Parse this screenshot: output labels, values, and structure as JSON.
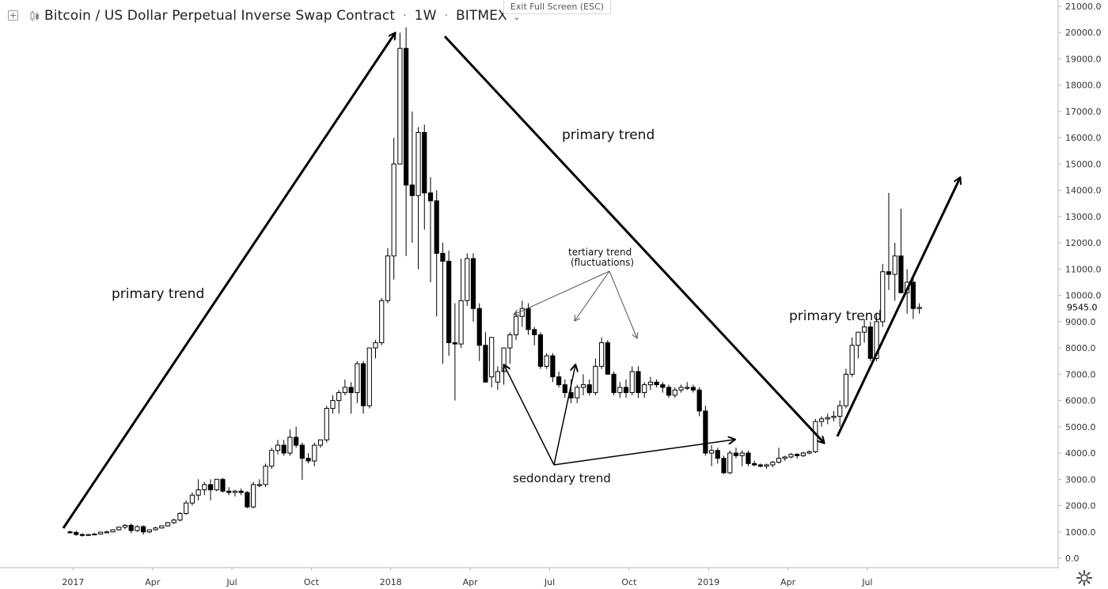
{
  "header": {
    "title": "Bitcoin / US Dollar Perpetual Inverse Swap Contract",
    "interval": "1W",
    "exchange": "BITMEX",
    "exit_fullscreen_label": "Exit Full Screen (ESC)"
  },
  "price_label": "9545.0",
  "icons": {
    "expand": "plus-square-icon",
    "chart_type": "candles-icon",
    "dropdown": "chevron-down-icon",
    "settings": "gear-icon"
  },
  "annotations": [
    {
      "text": "primary trend",
      "target": "2017 uptrend"
    },
    {
      "text": "primary trend",
      "target": "2018 downtrend"
    },
    {
      "text": "primary trend",
      "target": "2019 uptrend"
    },
    {
      "text": "tertiary trend",
      "target": "fluctuations label line 1"
    },
    {
      "text": "(fluctuations)",
      "target": "fluctuations label line 2"
    },
    {
      "text": "sedondary trend",
      "target": "secondary swings"
    }
  ],
  "chart_data": {
    "type": "candlestick",
    "title": "Bitcoin / US Dollar Perpetual Inverse Swap Contract",
    "interval": "1W",
    "exchange": "BITMEX",
    "y_ticks": [
      0,
      1000,
      2000,
      3000,
      4000,
      5000,
      6000,
      7000,
      8000,
      9000,
      10000,
      11000,
      12000,
      13000,
      14000,
      15000,
      16000,
      17000,
      18000,
      19000,
      20000,
      21000
    ],
    "ylim": [
      0,
      21000
    ],
    "x_ticks": [
      "2017",
      "Apr",
      "Jul",
      "Oct",
      "2018",
      "Apr",
      "Jul",
      "Oct",
      "2019",
      "Apr",
      "Jul"
    ],
    "last_price": 9545.0,
    "weeks_start": "2017-01-02",
    "ohlc": [
      [
        1000,
        1050,
        950,
        980
      ],
      [
        980,
        1050,
        850,
        900
      ],
      [
        900,
        950,
        820,
        870
      ],
      [
        870,
        920,
        850,
        900
      ],
      [
        900,
        960,
        880,
        920
      ],
      [
        920,
        1000,
        900,
        990
      ],
      [
        990,
        1050,
        970,
        1000
      ],
      [
        1000,
        1100,
        980,
        1080
      ],
      [
        1080,
        1200,
        1050,
        1180
      ],
      [
        1180,
        1300,
        1100,
        1250
      ],
      [
        1250,
        1320,
        950,
        1050
      ],
      [
        1050,
        1250,
        1000,
        1200
      ],
      [
        1200,
        1250,
        900,
        1000
      ],
      [
        1000,
        1100,
        950,
        1080
      ],
      [
        1080,
        1200,
        1050,
        1150
      ],
      [
        1150,
        1250,
        1120,
        1230
      ],
      [
        1230,
        1380,
        1200,
        1350
      ],
      [
        1350,
        1500,
        1300,
        1450
      ],
      [
        1450,
        1750,
        1400,
        1700
      ],
      [
        1700,
        2200,
        1650,
        2100
      ],
      [
        2100,
        2500,
        2000,
        2400
      ],
      [
        2400,
        3000,
        2200,
        2600
      ],
      [
        2600,
        2900,
        2400,
        2800
      ],
      [
        2800,
        3000,
        2200,
        2600
      ],
      [
        2600,
        3000,
        2550,
        3000
      ],
      [
        3000,
        3050,
        2500,
        2550
      ],
      [
        2550,
        2700,
        2400,
        2500
      ],
      [
        2500,
        2600,
        2350,
        2550
      ],
      [
        2550,
        2650,
        2400,
        2500
      ],
      [
        2500,
        2550,
        1900,
        1950
      ],
      [
        1950,
        2900,
        1900,
        2800
      ],
      [
        2800,
        3000,
        2700,
        2800
      ],
      [
        2800,
        3600,
        2700,
        3500
      ],
      [
        3500,
        4200,
        3400,
        4100
      ],
      [
        4100,
        4500,
        3950,
        4300
      ],
      [
        4300,
        4500,
        3900,
        4000
      ],
      [
        4000,
        4900,
        3900,
        4600
      ],
      [
        4600,
        5000,
        4200,
        4300
      ],
      [
        4300,
        4400,
        2980,
        3800
      ],
      [
        3800,
        4000,
        3600,
        3700
      ],
      [
        3700,
        4400,
        3500,
        4300
      ],
      [
        4300,
        4500,
        4200,
        4500
      ],
      [
        4500,
        5800,
        4400,
        5700
      ],
      [
        5700,
        6200,
        5500,
        6000
      ],
      [
        6000,
        6400,
        5500,
        6300
      ],
      [
        6300,
        6800,
        6200,
        6500
      ],
      [
        6500,
        6700,
        5500,
        6300
      ],
      [
        6300,
        7500,
        5900,
        7400
      ],
      [
        7400,
        7500,
        5500,
        5800
      ],
      [
        5800,
        8000,
        5700,
        8000
      ],
      [
        8000,
        8300,
        7600,
        8200
      ],
      [
        8200,
        9900,
        8100,
        9800
      ],
      [
        9800,
        11800,
        9700,
        11500
      ],
      [
        11500,
        16000,
        10600,
        15000
      ],
      [
        15000,
        20000,
        15000,
        19400
      ],
      [
        19400,
        20200,
        11500,
        14200
      ],
      [
        14200,
        17000,
        12000,
        13800
      ],
      [
        13800,
        16400,
        11000,
        16200
      ],
      [
        16200,
        16500,
        12500,
        13900
      ],
      [
        13900,
        14500,
        10500,
        13600
      ],
      [
        13600,
        14000,
        9200,
        11600
      ],
      [
        11600,
        12000,
        7400,
        11300
      ],
      [
        11300,
        11700,
        7700,
        8200
      ],
      [
        8200,
        9700,
        6000,
        8150
      ],
      [
        8150,
        11400,
        8000,
        9800
      ],
      [
        9800,
        11600,
        9600,
        11400
      ],
      [
        11400,
        11600,
        9000,
        9500
      ],
      [
        9500,
        9700,
        7500,
        8100
      ],
      [
        8100,
        8600,
        6900,
        6700
      ],
      [
        6900,
        8300,
        6500,
        8400
      ],
      [
        6700,
        7300,
        6400,
        7100
      ],
      [
        7100,
        8000,
        6600,
        8000
      ],
      [
        8000,
        8600,
        7400,
        8500
      ],
      [
        8500,
        9400,
        8300,
        9200
      ],
      [
        9200,
        9800,
        8800,
        9500
      ],
      [
        9500,
        9700,
        8500,
        8700
      ],
      [
        8700,
        8800,
        8100,
        8500
      ],
      [
        8500,
        8600,
        7200,
        7300
      ],
      [
        7300,
        7800,
        7200,
        7700
      ],
      [
        7700,
        7800,
        6700,
        6900
      ],
      [
        6900,
        7100,
        6500,
        6600
      ],
      [
        6600,
        6800,
        6100,
        6300
      ],
      [
        6300,
        6800,
        5900,
        6100
      ],
      [
        6100,
        6600,
        5900,
        6500
      ],
      [
        6500,
        7000,
        6200,
        6600
      ],
      [
        6600,
        6800,
        6200,
        6300
      ],
      [
        6300,
        7600,
        6200,
        7300
      ],
      [
        7300,
        8400,
        7200,
        8200
      ],
      [
        8200,
        8300,
        7000,
        7000
      ],
      [
        7000,
        7100,
        6200,
        6300
      ],
      [
        6300,
        6700,
        6100,
        6500
      ],
      [
        6500,
        6800,
        6100,
        6300
      ],
      [
        6300,
        7300,
        6200,
        7100
      ],
      [
        7100,
        7300,
        6100,
        6300
      ],
      [
        6300,
        6700,
        6100,
        6600
      ],
      [
        6600,
        6900,
        6400,
        6700
      ],
      [
        6700,
        6800,
        6500,
        6600
      ],
      [
        6600,
        6700,
        6300,
        6500
      ],
      [
        6500,
        6600,
        6100,
        6200
      ],
      [
        6200,
        6500,
        6100,
        6400
      ],
      [
        6400,
        6600,
        6300,
        6500
      ],
      [
        6500,
        6700,
        6400,
        6500
      ],
      [
        6500,
        6600,
        6300,
        6400
      ],
      [
        6400,
        6500,
        5400,
        5600
      ],
      [
        5600,
        5800,
        3900,
        4000
      ],
      [
        4000,
        4300,
        3500,
        4100
      ],
      [
        4100,
        4200,
        3600,
        3800
      ],
      [
        3800,
        3900,
        3200,
        3250
      ],
      [
        3250,
        4100,
        3200,
        4000
      ],
      [
        4000,
        4200,
        3800,
        3900
      ],
      [
        3900,
        4100,
        3500,
        4000
      ],
      [
        4000,
        4100,
        3500,
        3600
      ],
      [
        3600,
        3700,
        3500,
        3550
      ],
      [
        3550,
        3600,
        3450,
        3500
      ],
      [
        3500,
        3600,
        3400,
        3550
      ],
      [
        3550,
        3700,
        3450,
        3650
      ],
      [
        3650,
        4200,
        3600,
        3800
      ],
      [
        3800,
        3900,
        3700,
        3850
      ],
      [
        3850,
        4000,
        3800,
        3950
      ],
      [
        3950,
        4000,
        3800,
        3900
      ],
      [
        3900,
        4050,
        3850,
        4000
      ],
      [
        4000,
        4100,
        3950,
        4050
      ],
      [
        4050,
        5300,
        4000,
        5200
      ],
      [
        5200,
        5400,
        5000,
        5300
      ],
      [
        5300,
        5500,
        5100,
        5350
      ],
      [
        5350,
        5600,
        5200,
        5400
      ],
      [
        5400,
        6000,
        5000,
        5800
      ],
      [
        5800,
        7200,
        5700,
        7000
      ],
      [
        7000,
        8400,
        6900,
        8100
      ],
      [
        8100,
        8500,
        7600,
        8600
      ],
      [
        8600,
        9100,
        8200,
        8800
      ],
      [
        8800,
        9000,
        7500,
        7600
      ],
      [
        7600,
        9300,
        7500,
        9000
      ],
      [
        9000,
        11200,
        8800,
        10900
      ],
      [
        10900,
        13900,
        10200,
        10800
      ],
      [
        10800,
        12000,
        9800,
        11500
      ],
      [
        11500,
        13300,
        10200,
        10100
      ],
      [
        10100,
        11000,
        9300,
        10500
      ],
      [
        10500,
        10700,
        9100,
        9500
      ],
      [
        9500,
        9700,
        9300,
        9545
      ]
    ]
  }
}
